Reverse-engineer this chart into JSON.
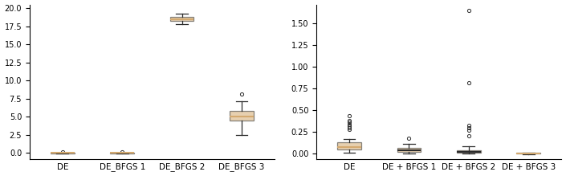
{
  "left": {
    "categories": [
      "DE",
      "DE_BFGS 1",
      "DE_BFGS 2",
      "DE_BFGS 3"
    ],
    "ylim": [
      -0.8,
      20.5
    ],
    "yticks": [
      0.0,
      2.5,
      5.0,
      7.5,
      10.0,
      12.5,
      15.0,
      17.5,
      20.0
    ],
    "boxes": [
      {
        "med": 0.0,
        "q1": -0.03,
        "q3": 0.03,
        "whislo": -0.03,
        "whishi": 0.05,
        "fliers": [
          0.18
        ]
      },
      {
        "med": 0.0,
        "q1": -0.03,
        "q3": 0.04,
        "whislo": -0.03,
        "whishi": 0.06,
        "fliers": [
          0.18
        ]
      },
      {
        "med": 18.5,
        "q1": 18.2,
        "q3": 18.8,
        "whislo": 17.8,
        "whishi": 19.2,
        "fliers": []
      },
      {
        "med": 5.0,
        "q1": 4.5,
        "q3": 5.8,
        "whislo": 2.5,
        "whishi": 7.2,
        "fliers": [
          8.2
        ]
      }
    ],
    "median_colors": [
      "#d4aa70",
      "#d4aa70",
      "#d4aa70",
      "#d4aa70"
    ],
    "box_facecolor": "#d4aa70",
    "box_edgecolor": "#2b2b2b"
  },
  "right": {
    "categories": [
      "DE",
      "DE + BFGS 1",
      "DE + BFGS 2",
      "DE + BFGS 3"
    ],
    "ylim": [
      -0.06,
      1.72
    ],
    "yticks": [
      0.0,
      0.25,
      0.5,
      0.75,
      1.0,
      1.25,
      1.5
    ],
    "boxes": [
      {
        "med": 0.08,
        "q1": 0.05,
        "q3": 0.13,
        "whislo": 0.01,
        "whishi": 0.17,
        "fliers": [
          0.28,
          0.3,
          0.32,
          0.34,
          0.36,
          0.38,
          0.44
        ]
      },
      {
        "med": 0.04,
        "q1": 0.025,
        "q3": 0.065,
        "whislo": 0.005,
        "whishi": 0.115,
        "fliers": [
          0.175
        ]
      },
      {
        "med": 0.02,
        "q1": 0.01,
        "q3": 0.038,
        "whislo": 0.0,
        "whishi": 0.085,
        "fliers": [
          0.21,
          0.27,
          0.3,
          0.33,
          0.82,
          1.65
        ]
      },
      {
        "med": 0.004,
        "q1": -0.002,
        "q3": 0.008,
        "whislo": -0.004,
        "whishi": 0.014,
        "fliers": []
      }
    ],
    "median_colors": [
      "#d4aa70",
      "#2b2b2b",
      "#2b2b2b",
      "#d4aa70"
    ],
    "box_facecolor": "#d4aa70",
    "box_edgecolor": "#2b2b2b"
  },
  "figsize": [
    7.05,
    2.19
  ],
  "dpi": 100,
  "tick_fontsize": 7,
  "label_fontsize": 7.5
}
